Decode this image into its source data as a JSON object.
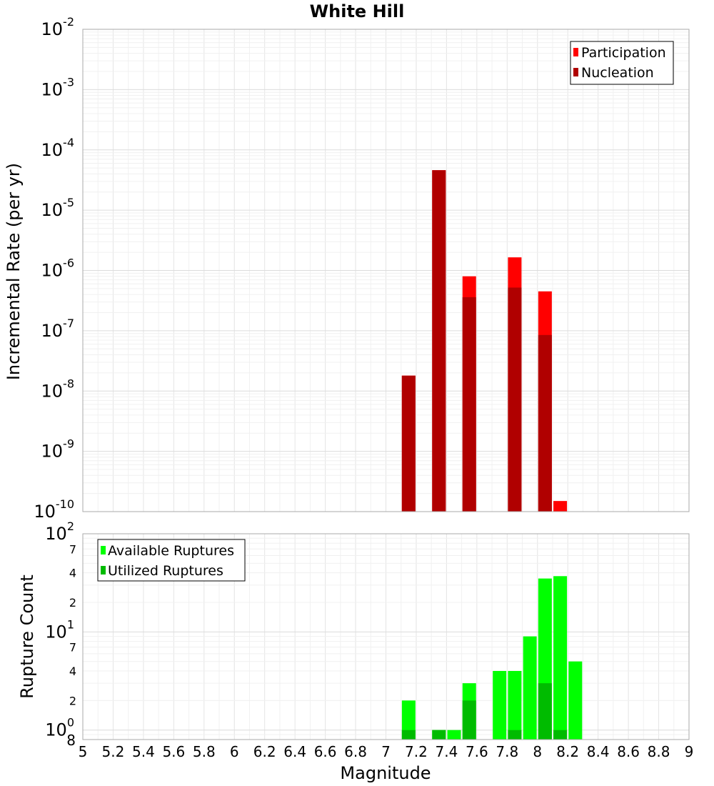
{
  "chart_data": [
    {
      "type": "bar",
      "title": "White Hill",
      "xlabel": "",
      "ylabel": "Incremental Rate (per yr)",
      "xlim": [
        5,
        9
      ],
      "ylim": [
        1e-10,
        0.01
      ],
      "yscale": "log",
      "grid": true,
      "legend_position": "top-right",
      "x": [
        7.15,
        7.35,
        7.55,
        7.85,
        8.05,
        8.15
      ],
      "series": [
        {
          "name": "Participation",
          "color": "#ff0000",
          "values": [
            1.8e-08,
            4.6e-05,
            8e-07,
            1.65e-06,
            4.5e-07,
            1.5e-10
          ]
        },
        {
          "name": "Nucleation",
          "color": "#b00000",
          "values": [
            1.8e-08,
            4.6e-05,
            3.6e-07,
            5.2e-07,
            8.5e-08,
            null
          ]
        }
      ]
    },
    {
      "type": "bar",
      "xlabel": "Magnitude",
      "ylabel": "Rupture Count",
      "xlim": [
        5,
        9
      ],
      "ylim": [
        0.8,
        100
      ],
      "yscale": "log",
      "grid": true,
      "legend_position": "top-left",
      "x": [
        7.15,
        7.35,
        7.45,
        7.55,
        7.75,
        7.85,
        7.95,
        8.05,
        8.15,
        8.25
      ],
      "series": [
        {
          "name": "Available Ruptures",
          "color": "#00ff00",
          "values": [
            2,
            1,
            1,
            3,
            4,
            4,
            9,
            35,
            37,
            5
          ]
        },
        {
          "name": "Utilized Ruptures",
          "color": "#00bb00",
          "values": [
            1,
            1,
            null,
            2,
            null,
            1,
            null,
            3,
            1,
            null
          ]
        }
      ]
    }
  ],
  "x_ticks": [
    "5",
    "5.2",
    "5.4",
    "5.6",
    "5.8",
    "6",
    "6.2",
    "6.4",
    "6.6",
    "6.8",
    "7",
    "7.2",
    "7.4",
    "7.6",
    "7.8",
    "8",
    "8.2",
    "8.4",
    "8.6",
    "8.8",
    "9"
  ],
  "top_y_ticks": [
    {
      "base": "10",
      "exp": "-2"
    },
    {
      "base": "10",
      "exp": "-3"
    },
    {
      "base": "10",
      "exp": "-4"
    },
    {
      "base": "10",
      "exp": "-5"
    },
    {
      "base": "10",
      "exp": "-6"
    },
    {
      "base": "10",
      "exp": "-7"
    },
    {
      "base": "10",
      "exp": "-8"
    },
    {
      "base": "10",
      "exp": "-9"
    },
    {
      "base": "10",
      "exp": "-10"
    }
  ],
  "bottom_y_ticks": {
    "major": [
      {
        "value": 100,
        "base": "10",
        "exp": "2"
      },
      {
        "value": 10,
        "base": "10",
        "exp": "1"
      },
      {
        "value": 1,
        "base": "10",
        "exp": "0"
      }
    ],
    "minor": [
      {
        "value": 70,
        "label": "7"
      },
      {
        "value": 40,
        "label": "4"
      },
      {
        "value": 20,
        "label": "2"
      },
      {
        "value": 7,
        "label": "7"
      },
      {
        "value": 4,
        "label": "4"
      },
      {
        "value": 2,
        "label": "2"
      },
      {
        "value": 0.8,
        "label": "8"
      }
    ]
  }
}
